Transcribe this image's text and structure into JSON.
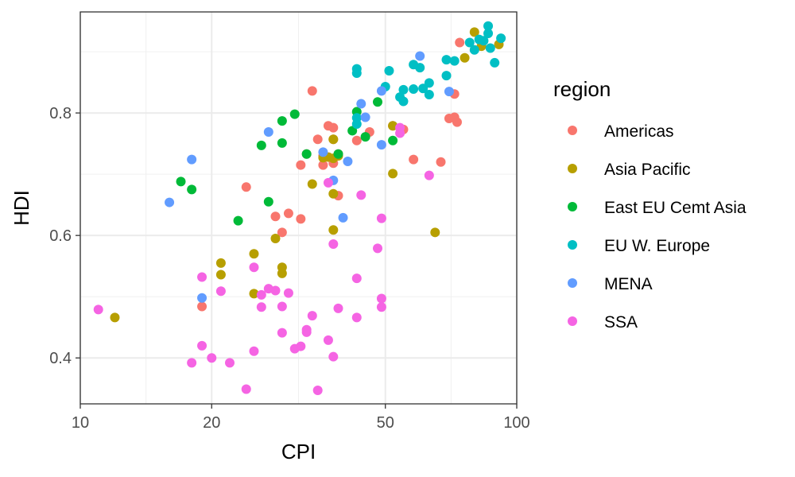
{
  "chart_data": {
    "type": "scatter",
    "xlabel": "CPI",
    "ylabel": "HDI",
    "x_scale": "log10",
    "xlim": [
      10,
      100
    ],
    "ylim": [
      0.325,
      0.965
    ],
    "x_ticks": [
      10,
      20,
      50,
      100
    ],
    "x_tick_labels": [
      "10",
      "20",
      "50",
      "100"
    ],
    "y_ticks": [
      0.4,
      0.6,
      0.8
    ],
    "y_tick_labels": [
      "0.4",
      "0.6",
      "0.8"
    ],
    "grid": true,
    "legend": {
      "title": "region",
      "position": "right"
    },
    "series": [
      {
        "name": "Americas",
        "color": "#F8766D",
        "points": [
          [
            34,
            0.836
          ],
          [
            37,
            0.779
          ],
          [
            38,
            0.776
          ],
          [
            35,
            0.757
          ],
          [
            38,
            0.757
          ],
          [
            43,
            0.755
          ],
          [
            46,
            0.769
          ],
          [
            52,
            0.779
          ],
          [
            55,
            0.773
          ],
          [
            36,
            0.73
          ],
          [
            39,
            0.733
          ],
          [
            36,
            0.715
          ],
          [
            38,
            0.718
          ],
          [
            32,
            0.715
          ],
          [
            33,
            0.733
          ],
          [
            24,
            0.679
          ],
          [
            39,
            0.665
          ],
          [
            30,
            0.636
          ],
          [
            28,
            0.631
          ],
          [
            32,
            0.627
          ],
          [
            29,
            0.605
          ],
          [
            58,
            0.724
          ],
          [
            67,
            0.72
          ],
          [
            70,
            0.791
          ],
          [
            72,
            0.793
          ],
          [
            73,
            0.785
          ],
          [
            72,
            0.831
          ],
          [
            74,
            0.915
          ],
          [
            19,
            0.484
          ]
        ]
      },
      {
        "name": "Asia Pacific",
        "color": "#B79F00",
        "points": [
          [
            12,
            0.466
          ],
          [
            21,
            0.555
          ],
          [
            21,
            0.536
          ],
          [
            25,
            0.57
          ],
          [
            28,
            0.595
          ],
          [
            29,
            0.548
          ],
          [
            29,
            0.538
          ],
          [
            25,
            0.505
          ],
          [
            34,
            0.684
          ],
          [
            38,
            0.668
          ],
          [
            38,
            0.609
          ],
          [
            37,
            0.728
          ],
          [
            38,
            0.726
          ],
          [
            39,
            0.73
          ],
          [
            36,
            0.727
          ],
          [
            38,
            0.757
          ],
          [
            52,
            0.701
          ],
          [
            52,
            0.779
          ],
          [
            65,
            0.605
          ],
          [
            76,
            0.89
          ],
          [
            80,
            0.932
          ],
          [
            83,
            0.909
          ],
          [
            91,
            0.912
          ]
        ]
      },
      {
        "name": "East EU Cemt Asia",
        "color": "#00BA38",
        "points": [
          [
            17,
            0.688
          ],
          [
            18,
            0.675
          ],
          [
            23,
            0.624
          ],
          [
            26,
            0.747
          ],
          [
            27,
            0.655
          ],
          [
            29,
            0.751
          ],
          [
            29,
            0.787
          ],
          [
            31,
            0.798
          ],
          [
            33,
            0.733
          ],
          [
            39,
            0.733
          ],
          [
            42,
            0.771
          ],
          [
            43,
            0.802
          ],
          [
            45,
            0.761
          ],
          [
            48,
            0.818
          ],
          [
            52,
            0.755
          ]
        ]
      },
      {
        "name": "EU W. Europe",
        "color": "#00BFC4",
        "points": [
          [
            43,
            0.782
          ],
          [
            43,
            0.792
          ],
          [
            43,
            0.865
          ],
          [
            43,
            0.872
          ],
          [
            50,
            0.843
          ],
          [
            51,
            0.869
          ],
          [
            54,
            0.826
          ],
          [
            55,
            0.838
          ],
          [
            55,
            0.819
          ],
          [
            58,
            0.879
          ],
          [
            58,
            0.839
          ],
          [
            60,
            0.874
          ],
          [
            61,
            0.84
          ],
          [
            63,
            0.849
          ],
          [
            63,
            0.83
          ],
          [
            69,
            0.887
          ],
          [
            69,
            0.861
          ],
          [
            72,
            0.885
          ],
          [
            78,
            0.915
          ],
          [
            80,
            0.903
          ],
          [
            82,
            0.92
          ],
          [
            84,
            0.918
          ],
          [
            86,
            0.942
          ],
          [
            86,
            0.93
          ],
          [
            87,
            0.906
          ],
          [
            89,
            0.882
          ],
          [
            92,
            0.922
          ]
        ]
      },
      {
        "name": "MENA",
        "color": "#619CFF",
        "points": [
          [
            16,
            0.654
          ],
          [
            18,
            0.724
          ],
          [
            19,
            0.498
          ],
          [
            27,
            0.769
          ],
          [
            36,
            0.736
          ],
          [
            38,
            0.69
          ],
          [
            40,
            0.629
          ],
          [
            41,
            0.721
          ],
          [
            44,
            0.815
          ],
          [
            45,
            0.793
          ],
          [
            49,
            0.836
          ],
          [
            49,
            0.748
          ],
          [
            60,
            0.893
          ],
          [
            70,
            0.835
          ]
        ]
      },
      {
        "name": "SSA",
        "color": "#F564E3",
        "points": [
          [
            11,
            0.479
          ],
          [
            18,
            0.392
          ],
          [
            19,
            0.532
          ],
          [
            19,
            0.42
          ],
          [
            20,
            0.4
          ],
          [
            21,
            0.509
          ],
          [
            22,
            0.392
          ],
          [
            24,
            0.349
          ],
          [
            25,
            0.548
          ],
          [
            25,
            0.411
          ],
          [
            26,
            0.503
          ],
          [
            26,
            0.483
          ],
          [
            27,
            0.513
          ],
          [
            28,
            0.51
          ],
          [
            29,
            0.484
          ],
          [
            29,
            0.441
          ],
          [
            30,
            0.506
          ],
          [
            31,
            0.415
          ],
          [
            32,
            0.419
          ],
          [
            33,
            0.446
          ],
          [
            33,
            0.442
          ],
          [
            34,
            0.469
          ],
          [
            35,
            0.347
          ],
          [
            37,
            0.429
          ],
          [
            38,
            0.402
          ],
          [
            37,
            0.686
          ],
          [
            38,
            0.586
          ],
          [
            39,
            0.481
          ],
          [
            43,
            0.53
          ],
          [
            43,
            0.466
          ],
          [
            44,
            0.666
          ],
          [
            48,
            0.579
          ],
          [
            49,
            0.628
          ],
          [
            49,
            0.497
          ],
          [
            49,
            0.483
          ],
          [
            54,
            0.776
          ],
          [
            54,
            0.767
          ],
          [
            63,
            0.698
          ]
        ]
      }
    ]
  }
}
